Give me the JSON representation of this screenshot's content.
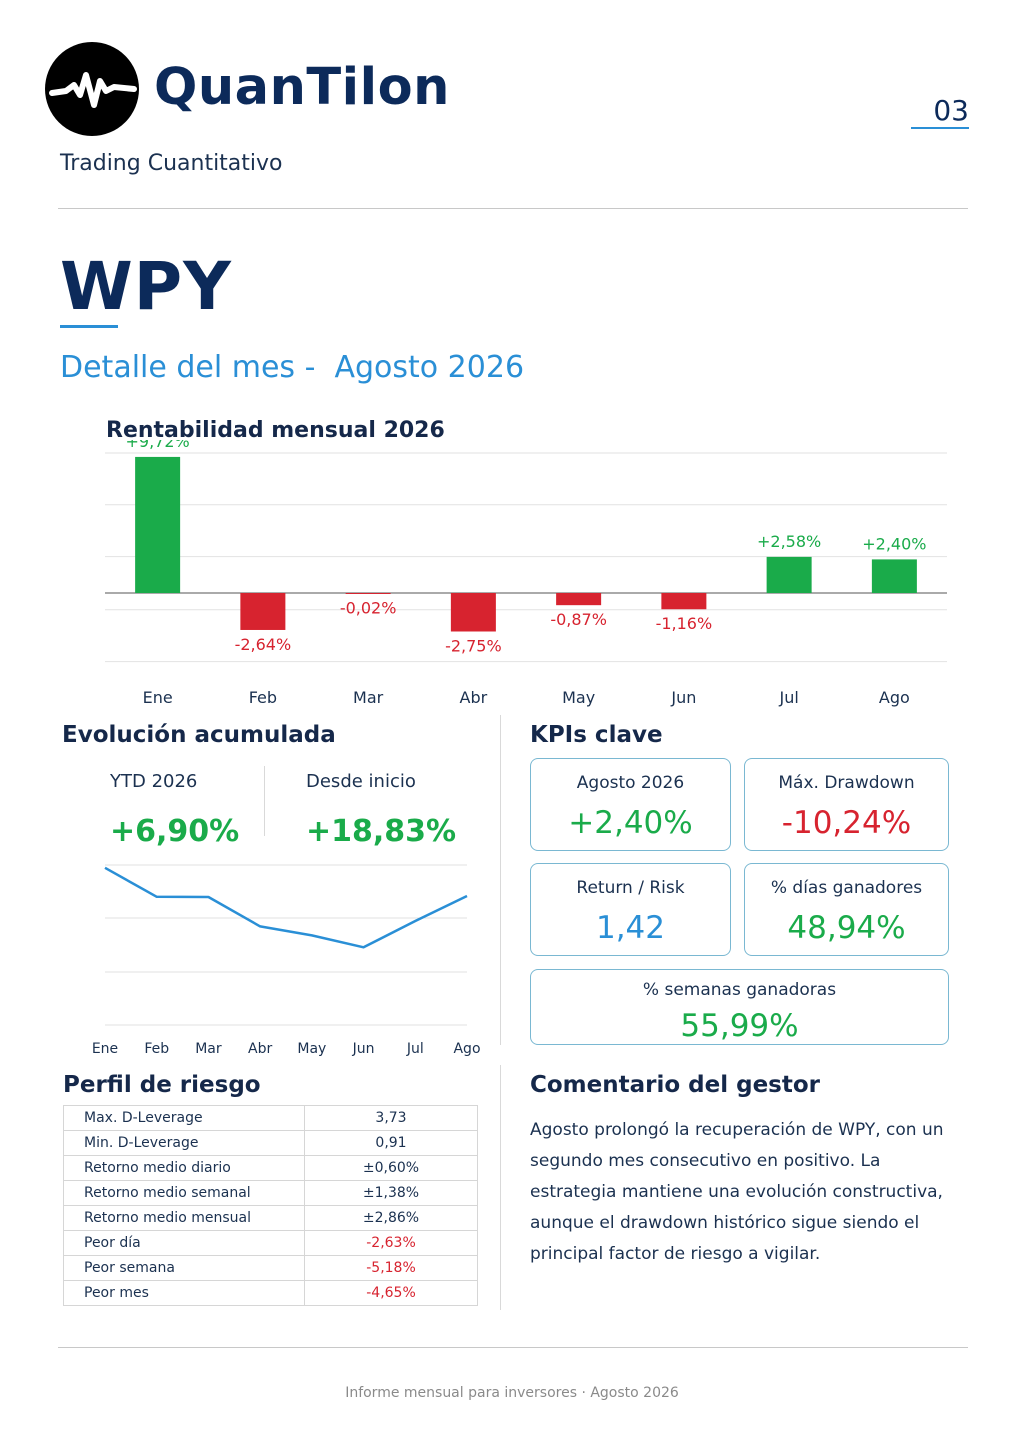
{
  "header": {
    "brand": "QuanTilon",
    "subtitle": "Trading Cuantitativo",
    "page_number": "03"
  },
  "title": {
    "ticker": "WPY",
    "month_line": "Detalle del mes -  Agosto 2026"
  },
  "monthly_chart_title": "Rentabilidad mensual 2026",
  "colors": {
    "positive": "#1aab4a",
    "negative": "#d7232f",
    "accent": "#2a8fd6",
    "navy": "#0c2a5a"
  },
  "chart_data": [
    {
      "type": "bar",
      "title": "Rentabilidad mensual 2026",
      "categories": [
        "Ene",
        "Feb",
        "Mar",
        "Abr",
        "May",
        "Jun",
        "Jul",
        "Ago"
      ],
      "values": [
        9.72,
        -2.64,
        -0.02,
        -2.75,
        -0.87,
        -1.16,
        2.58,
        2.4
      ],
      "value_labels": [
        "+9,72%",
        "-2,64%",
        "-0,02%",
        "-2,75%",
        "-0,87%",
        "-1,16%",
        "+2,58%",
        "+2,40%"
      ],
      "ylim": [
        -5,
        10
      ],
      "grid": true
    },
    {
      "type": "line",
      "title": "Evolución acumulada",
      "categories": [
        "Ene",
        "Feb",
        "Mar",
        "Abr",
        "May",
        "Jun",
        "Jul",
        "Ago"
      ],
      "values": [
        9.72,
        6.82,
        6.8,
        3.86,
        2.96,
        1.77,
        4.4,
        6.9
      ],
      "ylim": [
        -6,
        10
      ],
      "grid": true
    }
  ],
  "cumulative": {
    "title": "Evolución acumulada",
    "ytd_label": "YTD 2026",
    "ytd_value": "+6,90%",
    "since_label": "Desde inicio",
    "since_value": "+18,83%"
  },
  "kpis": {
    "title": "KPIs clave",
    "cards": [
      {
        "label": "Agosto 2026",
        "value": "+2,40%"
      },
      {
        "label": "Máx. Drawdown",
        "value": "-10,24%"
      },
      {
        "label": "Return / Risk",
        "value": "1,42"
      },
      {
        "label": "% días ganadores",
        "value": "48,94%"
      },
      {
        "label": "% semanas ganadoras",
        "value": "55,99%"
      }
    ]
  },
  "risk": {
    "title": "Perfil de riesgo",
    "rows": [
      {
        "label": "Max. D-Leverage",
        "value": "3,73"
      },
      {
        "label": "Min. D-Leverage",
        "value": "0,91"
      },
      {
        "label": "Retorno medio diario",
        "value": "±0,60%"
      },
      {
        "label": "Retorno medio semanal",
        "value": "±1,38%"
      },
      {
        "label": "Retorno medio mensual",
        "value": "±2,86%"
      },
      {
        "label": "Peor día",
        "value": "-2,63%"
      },
      {
        "label": "Peor semana",
        "value": "-5,18%"
      },
      {
        "label": "Peor mes",
        "value": "-4,65%"
      }
    ]
  },
  "comment": {
    "title": "Comentario del gestor",
    "text": "Agosto prolongó la recuperación de WPY, con un segundo mes consecutivo en positivo. La estrategia mantiene una evolución constructiva, aunque el drawdown histórico sigue siendo el principal factor de riesgo a vigilar."
  },
  "footer": "Informe mensual para inversores · Agosto 2026"
}
